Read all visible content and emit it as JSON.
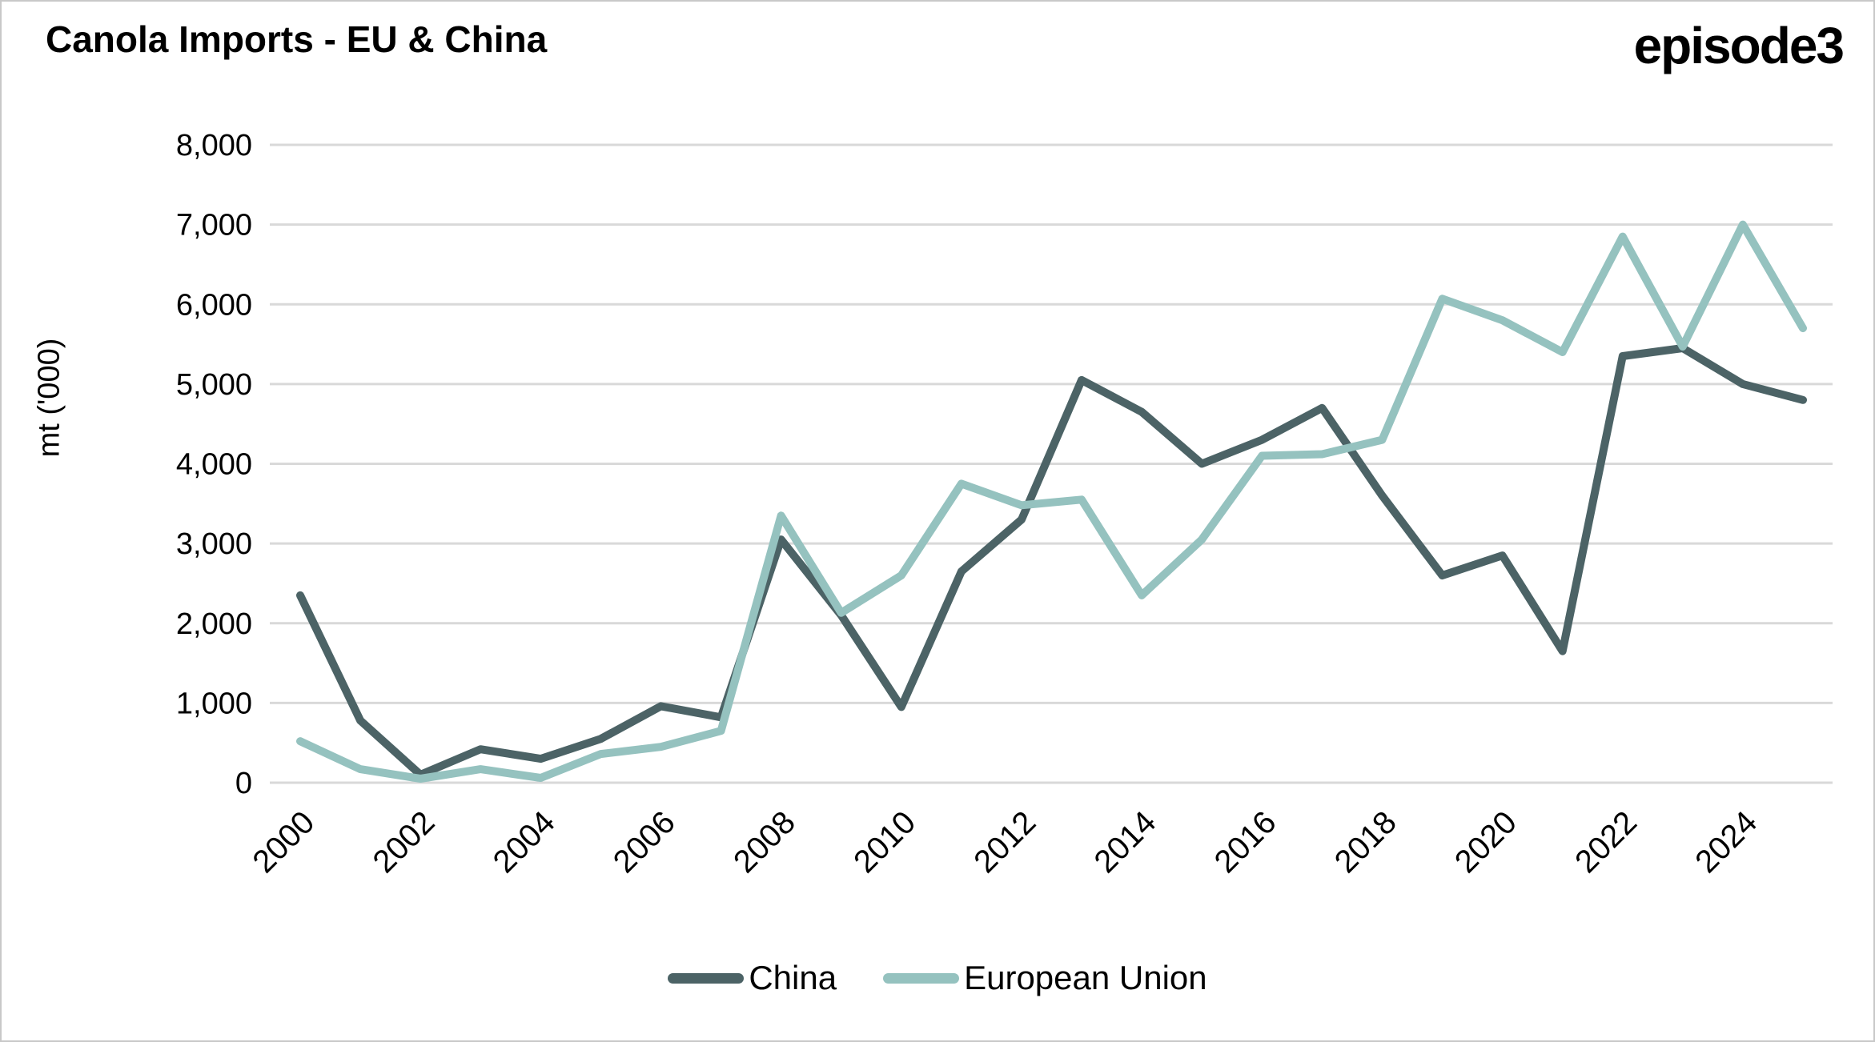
{
  "header": {
    "title": "Canola Imports - EU & China",
    "logo_text": "episode3"
  },
  "colors": {
    "china_line": "#4c6366",
    "eu_line": "#95c2bf",
    "gridline": "#d9d9d9",
    "text": "#000000",
    "background": "#ffffff",
    "border": "#c8c8c8"
  },
  "legend": {
    "items": [
      {
        "label": "China",
        "color": "#4c6366"
      },
      {
        "label": "European Union",
        "color": "#95c2bf"
      }
    ]
  },
  "chart_data": {
    "type": "line",
    "title": "Canola Imports - EU & China",
    "xlabel": "",
    "ylabel": "mt ('000)",
    "ylim": [
      0,
      8000
    ],
    "y_tick_step": 1000,
    "grid": "horizontal",
    "legend_position": "bottom",
    "x": [
      2000,
      2001,
      2002,
      2003,
      2004,
      2005,
      2006,
      2007,
      2008,
      2009,
      2010,
      2011,
      2012,
      2013,
      2014,
      2015,
      2016,
      2017,
      2018,
      2019,
      2020,
      2021,
      2022,
      2023,
      2024,
      2025
    ],
    "x_tick_labels": [
      "2000",
      "2002",
      "2004",
      "2006",
      "2008",
      "2010",
      "2012",
      "2014",
      "2016",
      "2018",
      "2020",
      "2022",
      "2024"
    ],
    "series": [
      {
        "name": "China",
        "color": "#4c6366",
        "values": [
          2350,
          780,
          100,
          420,
          300,
          550,
          960,
          820,
          3050,
          2100,
          950,
          2650,
          3300,
          5050,
          4650,
          4000,
          4300,
          4700,
          3600,
          2600,
          2850,
          1650,
          5350,
          5450,
          5000,
          4800
        ]
      },
      {
        "name": "European Union",
        "color": "#95c2bf",
        "values": [
          520,
          170,
          50,
          170,
          60,
          360,
          450,
          650,
          3350,
          2130,
          2600,
          3750,
          3480,
          3550,
          2350,
          3050,
          4100,
          4120,
          4300,
          6070,
          5800,
          5400,
          6850,
          5470,
          7000,
          5700
        ]
      }
    ]
  }
}
